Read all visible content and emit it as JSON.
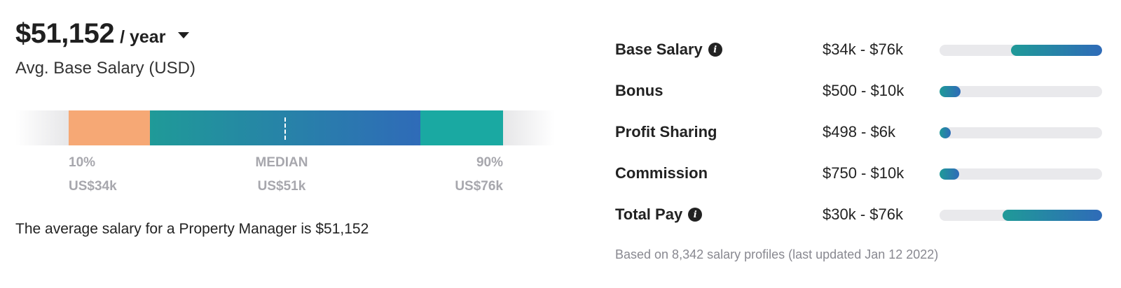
{
  "headline": {
    "amount": "$51,152",
    "period": "/ year",
    "subtitle": "Avg. Base Salary (USD)"
  },
  "distribution": {
    "segments": [
      {
        "color": "#f6a875"
      },
      {
        "color": "gradient"
      },
      {
        "color": "#1aa9a2"
      }
    ],
    "p10": {
      "label": "10%",
      "value": "US$34k"
    },
    "median": {
      "label": "MEDIAN",
      "value": "US$51k"
    },
    "p90": {
      "label": "90%",
      "value": "US$76k"
    }
  },
  "summary_text": "The average salary for a Property Manager is $51,152",
  "pay_breakdown": {
    "rows": [
      {
        "label": "Base Salary",
        "info": true,
        "range": "$34k - $76k",
        "fill_start": 0.44,
        "fill_end": 1.0
      },
      {
        "label": "Bonus",
        "info": false,
        "range": "$500 - $10k",
        "fill_start": 0.0,
        "fill_end": 0.13
      },
      {
        "label": "Profit Sharing",
        "info": false,
        "range": "$498 - $6k",
        "fill_start": 0.0,
        "fill_end": 0.07
      },
      {
        "label": "Commission",
        "info": false,
        "range": "$750 - $10k",
        "fill_start": 0.0,
        "fill_end": 0.12
      },
      {
        "label": "Total Pay",
        "info": true,
        "range": "$30k - $76k",
        "fill_start": 0.39,
        "fill_end": 1.0
      }
    ],
    "footnote": "Based on 8,342 salary profiles (last updated Jan 12 2022)"
  },
  "colors": {
    "p10_segment": "#f6a875",
    "p90_segment": "#1aa9a2",
    "gradient_start": "#1f9a98",
    "gradient_end": "#2f6bb8",
    "track": "#e9e9ec"
  },
  "icons": {
    "dropdown": "chevron-down-icon",
    "info": "info-icon"
  }
}
